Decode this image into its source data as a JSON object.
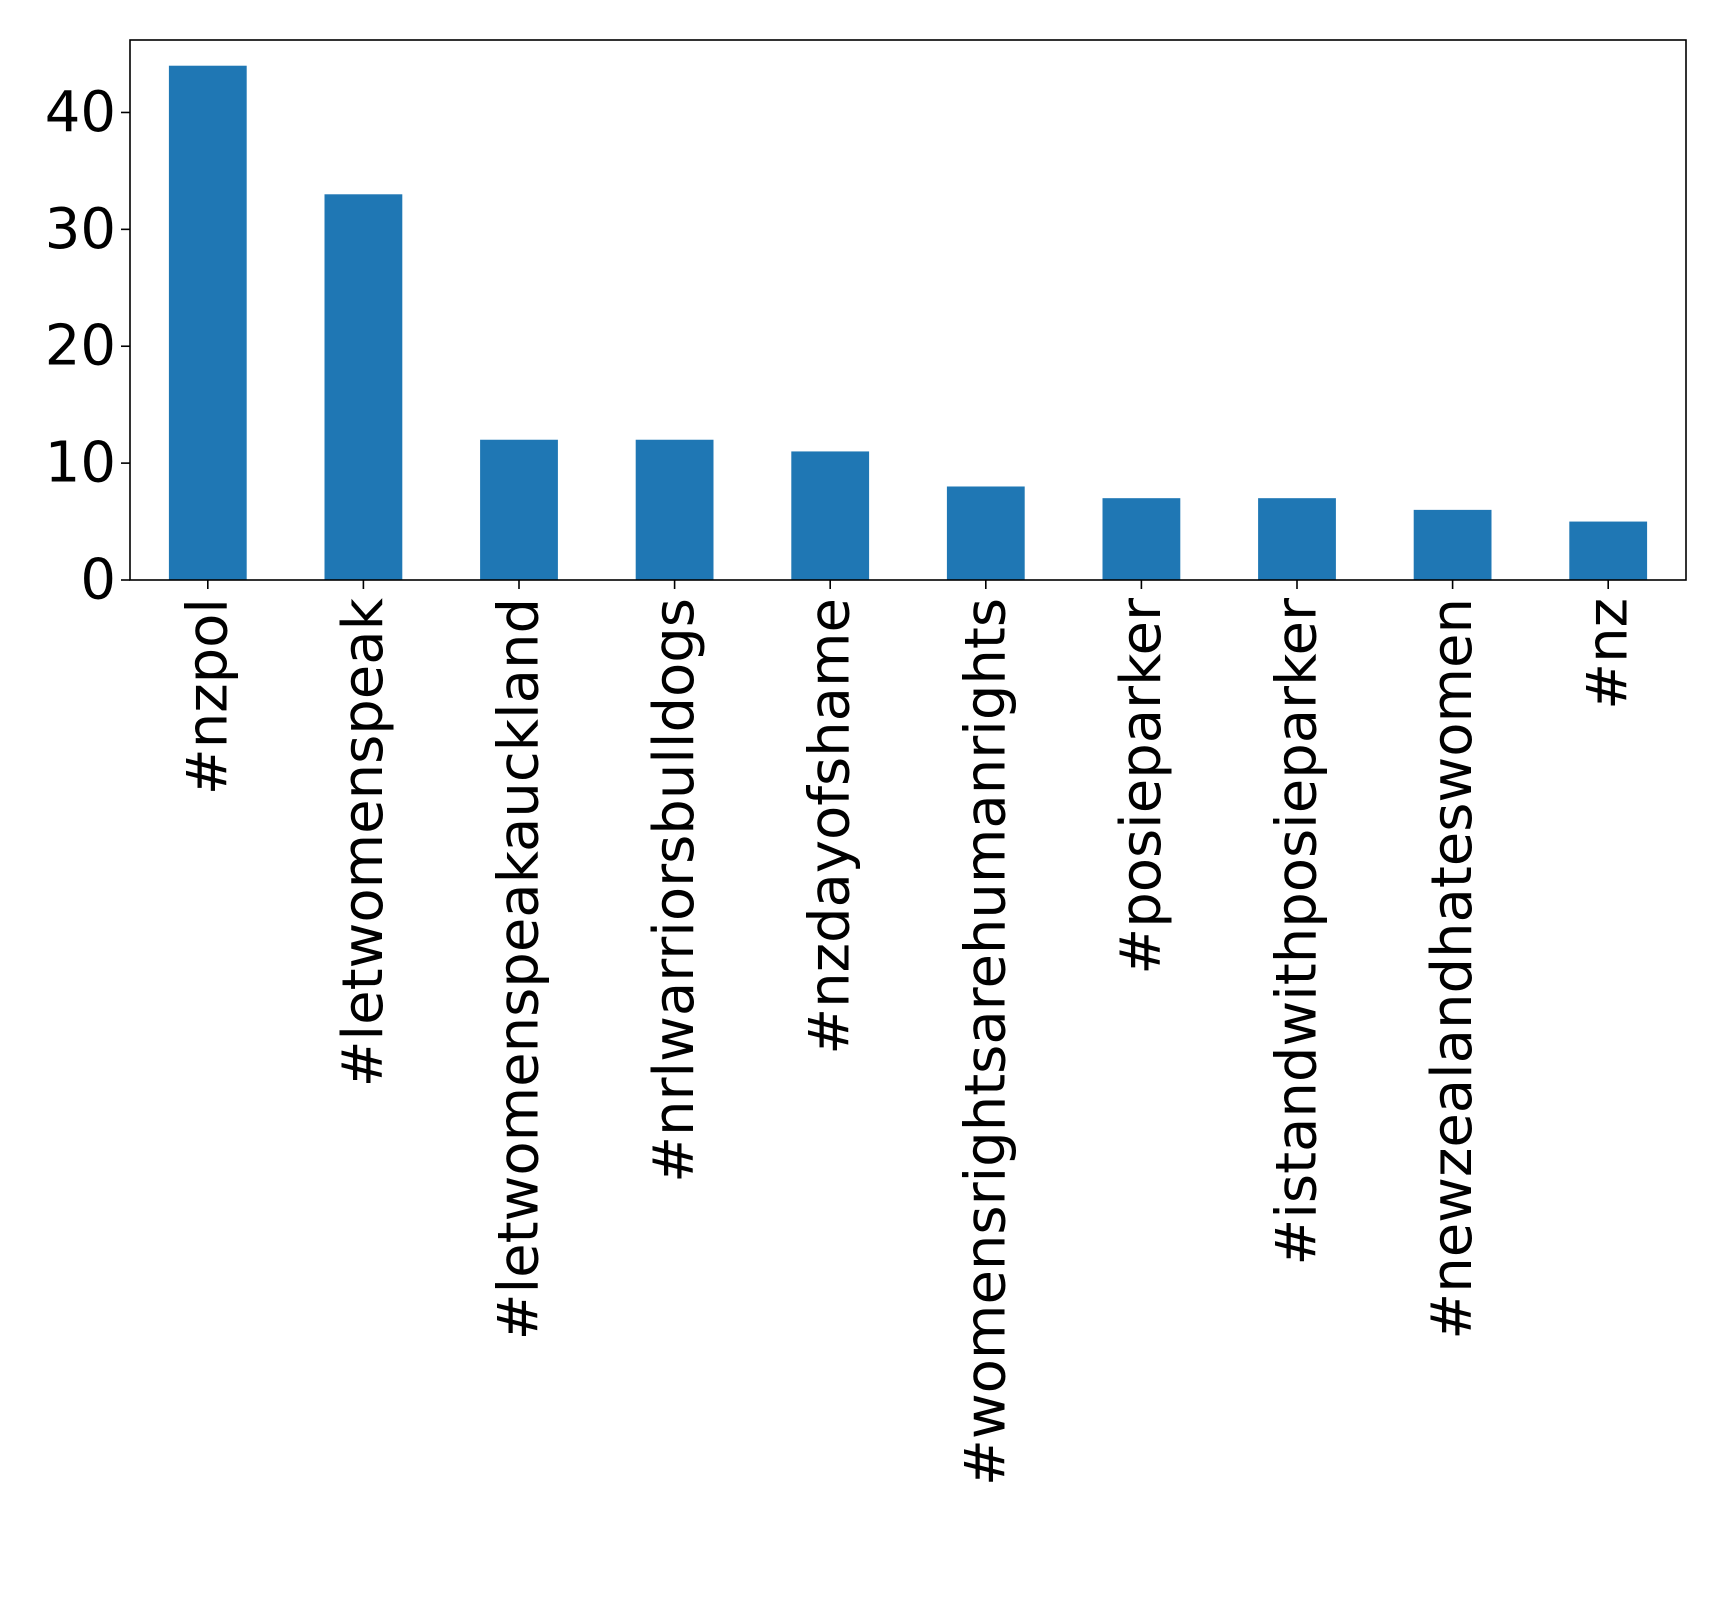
{
  "chart_data": {
    "type": "bar",
    "categories": [
      "#nzpol",
      "#letwomenspeak",
      "#letwomenspeakauckland",
      "#nrlwarriorsbulldogs",
      "#nzdayofshame",
      "#womensrightsarehumanrights",
      "#posieparker",
      "#istandwithposieparker",
      "#newzealandhateswomen",
      "#nz"
    ],
    "values": [
      44,
      33,
      12,
      12,
      11,
      8,
      7,
      7,
      6,
      5
    ],
    "yticks": [
      0,
      10,
      20,
      30,
      40
    ],
    "ylim": [
      0,
      46.2
    ],
    "bar_color": "#1f77b4",
    "grid": false,
    "legend": false
  }
}
